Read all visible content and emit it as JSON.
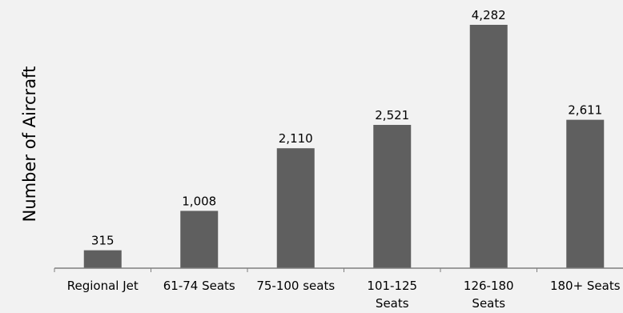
{
  "chart_data": {
    "type": "bar",
    "title": "",
    "xlabel": "",
    "ylabel": "Number of Aircraft",
    "categories": [
      "Regional Jet",
      "61-74 Seats",
      "75-100 seats",
      "101-125 Seats",
      "126-180 Seats",
      "180+ Seats"
    ],
    "category_lines": [
      [
        "Regional Jet"
      ],
      [
        "61-74 Seats"
      ],
      [
        "75-100 seats"
      ],
      [
        "101-125",
        "Seats"
      ],
      [
        "126-180",
        "Seats"
      ],
      [
        "180+ Seats"
      ]
    ],
    "values": [
      315,
      1008,
      2110,
      2521,
      4282,
      2611
    ],
    "data_labels": [
      "315",
      "1,008",
      "2,110",
      "2,521",
      "4,282",
      "2,611"
    ],
    "ylim": [
      0,
      4282
    ],
    "grid": false,
    "legend": "none",
    "colors": {
      "bar": "#5f5f5f",
      "axis": "#7f7f7f",
      "background": "#f2f2f2",
      "text": "#000000"
    }
  }
}
